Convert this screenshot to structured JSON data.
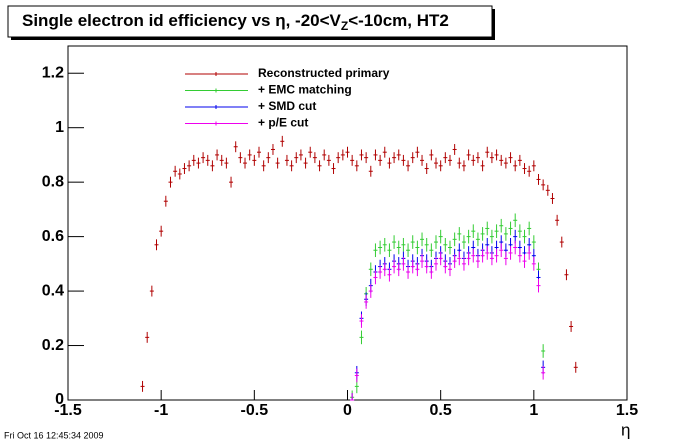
{
  "chart_data": {
    "type": "scatter",
    "title": [
      "Single electron id efficiency vs η, -20<V",
      "Z",
      "<-10cm, HT2"
    ],
    "x_label": "η",
    "footer": "Fri Oct 16 12:45:34 2009",
    "xlim": [
      -1.5,
      1.5
    ],
    "ylim": [
      0,
      1.3
    ],
    "xticks": [
      -1.5,
      -1,
      -0.5,
      0,
      0.5,
      1,
      1.5
    ],
    "yticks": [
      0,
      0.2,
      0.4,
      0.6,
      0.8,
      1,
      1.2
    ],
    "series": [
      {
        "name": "Reconstructed primary",
        "color": "#b00000",
        "error": 0.02,
        "x": [
          -1.1,
          -1.075,
          -1.05,
          -1.025,
          -1,
          -0.975,
          -0.95,
          -0.925,
          -0.9,
          -0.875,
          -0.85,
          -0.825,
          -0.8,
          -0.775,
          -0.75,
          -0.725,
          -0.7,
          -0.675,
          -0.65,
          -0.625,
          -0.6,
          -0.575,
          -0.55,
          -0.525,
          -0.5,
          -0.475,
          -0.45,
          -0.425,
          -0.4,
          -0.375,
          -0.35,
          -0.325,
          -0.3,
          -0.275,
          -0.25,
          -0.225,
          -0.2,
          -0.175,
          -0.15,
          -0.125,
          -0.1,
          -0.075,
          -0.05,
          -0.025,
          0,
          0.025,
          0.05,
          0.075,
          0.1,
          0.125,
          0.15,
          0.175,
          0.2,
          0.225,
          0.25,
          0.275,
          0.3,
          0.325,
          0.35,
          0.375,
          0.4,
          0.425,
          0.45,
          0.475,
          0.5,
          0.525,
          0.55,
          0.575,
          0.6,
          0.625,
          0.65,
          0.675,
          0.7,
          0.725,
          0.75,
          0.775,
          0.8,
          0.825,
          0.85,
          0.875,
          0.9,
          0.925,
          0.95,
          0.975,
          1,
          1.025,
          1.05,
          1.075,
          1.1,
          1.125,
          1.15,
          1.175,
          1.2,
          1.225
        ],
        "values": [
          0.05,
          0.23,
          0.4,
          0.57,
          0.62,
          0.73,
          0.8,
          0.84,
          0.83,
          0.85,
          0.86,
          0.88,
          0.87,
          0.89,
          0.88,
          0.86,
          0.9,
          0.88,
          0.87,
          0.8,
          0.93,
          0.89,
          0.87,
          0.9,
          0.88,
          0.91,
          0.86,
          0.89,
          0.92,
          0.87,
          0.95,
          0.88,
          0.86,
          0.89,
          0.9,
          0.87,
          0.91,
          0.89,
          0.86,
          0.9,
          0.88,
          0.85,
          0.89,
          0.9,
          0.91,
          0.88,
          0.86,
          0.9,
          0.89,
          0.84,
          0.9,
          0.88,
          0.91,
          0.87,
          0.89,
          0.9,
          0.88,
          0.86,
          0.89,
          0.91,
          0.88,
          0.85,
          0.9,
          0.87,
          0.86,
          0.89,
          0.88,
          0.92,
          0.87,
          0.86,
          0.9,
          0.88,
          0.89,
          0.86,
          0.91,
          0.89,
          0.9,
          0.88,
          0.87,
          0.89,
          0.86,
          0.88,
          0.85,
          0.84,
          0.86,
          0.81,
          0.79,
          0.77,
          0.74,
          0.66,
          0.58,
          0.46,
          0.27,
          0.12
        ]
      },
      {
        "name": "+ EMC matching",
        "color": "#33cc33",
        "error": 0.025,
        "x": [
          0.025,
          0.05,
          0.075,
          0.1,
          0.125,
          0.15,
          0.175,
          0.2,
          0.225,
          0.25,
          0.275,
          0.3,
          0.325,
          0.35,
          0.375,
          0.4,
          0.425,
          0.45,
          0.475,
          0.5,
          0.525,
          0.55,
          0.575,
          0.6,
          0.625,
          0.65,
          0.675,
          0.7,
          0.725,
          0.75,
          0.775,
          0.8,
          0.825,
          0.85,
          0.875,
          0.9,
          0.925,
          0.95,
          0.975,
          1,
          1.025,
          1.05
        ],
        "values": [
          0.01,
          0.05,
          0.23,
          0.39,
          0.48,
          0.55,
          0.56,
          0.57,
          0.55,
          0.58,
          0.56,
          0.57,
          0.55,
          0.58,
          0.56,
          0.59,
          0.57,
          0.55,
          0.58,
          0.6,
          0.57,
          0.56,
          0.59,
          0.61,
          0.58,
          0.6,
          0.62,
          0.59,
          0.61,
          0.63,
          0.6,
          0.62,
          0.64,
          0.61,
          0.63,
          0.66,
          0.62,
          0.6,
          0.63,
          0.58,
          0.48,
          0.18
        ]
      },
      {
        "name": "+ SMD cut",
        "color": "#0000ee",
        "error": 0.025,
        "x": [
          0.025,
          0.05,
          0.075,
          0.1,
          0.125,
          0.15,
          0.175,
          0.2,
          0.225,
          0.25,
          0.275,
          0.3,
          0.325,
          0.35,
          0.375,
          0.4,
          0.425,
          0.45,
          0.475,
          0.5,
          0.525,
          0.55,
          0.575,
          0.6,
          0.625,
          0.65,
          0.675,
          0.7,
          0.725,
          0.75,
          0.775,
          0.8,
          0.825,
          0.85,
          0.875,
          0.9,
          0.925,
          0.95,
          0.975,
          1,
          1.025,
          1.05
        ],
        "values": [
          0,
          0.1,
          0.3,
          0.37,
          0.42,
          0.47,
          0.49,
          0.5,
          0.48,
          0.51,
          0.5,
          0.52,
          0.49,
          0.51,
          0.5,
          0.53,
          0.51,
          0.49,
          0.52,
          0.54,
          0.51,
          0.5,
          0.53,
          0.55,
          0.52,
          0.54,
          0.56,
          0.53,
          0.55,
          0.57,
          0.54,
          0.56,
          0.58,
          0.55,
          0.57,
          0.6,
          0.56,
          0.54,
          0.57,
          0.53,
          0.45,
          0.12
        ]
      },
      {
        "name": "+ p/E cut",
        "color": "#ee00ee",
        "error": 0.025,
        "x": [
          0.025,
          0.05,
          0.075,
          0.1,
          0.125,
          0.15,
          0.175,
          0.2,
          0.225,
          0.25,
          0.275,
          0.3,
          0.325,
          0.35,
          0.375,
          0.4,
          0.425,
          0.45,
          0.475,
          0.5,
          0.525,
          0.55,
          0.575,
          0.6,
          0.625,
          0.65,
          0.675,
          0.7,
          0.725,
          0.75,
          0.775,
          0.8,
          0.825,
          0.85,
          0.875,
          0.9,
          0.925,
          0.95,
          0.975,
          1,
          1.025,
          1.05
        ],
        "values": [
          0,
          0.09,
          0.29,
          0.36,
          0.4,
          0.45,
          0.47,
          0.48,
          0.46,
          0.49,
          0.48,
          0.5,
          0.47,
          0.49,
          0.48,
          0.51,
          0.49,
          0.47,
          0.5,
          0.52,
          0.49,
          0.48,
          0.51,
          0.52,
          0.5,
          0.52,
          0.53,
          0.51,
          0.53,
          0.54,
          0.52,
          0.53,
          0.55,
          0.52,
          0.54,
          0.56,
          0.53,
          0.51,
          0.54,
          0.5,
          0.42,
          0.1
        ]
      }
    ]
  }
}
